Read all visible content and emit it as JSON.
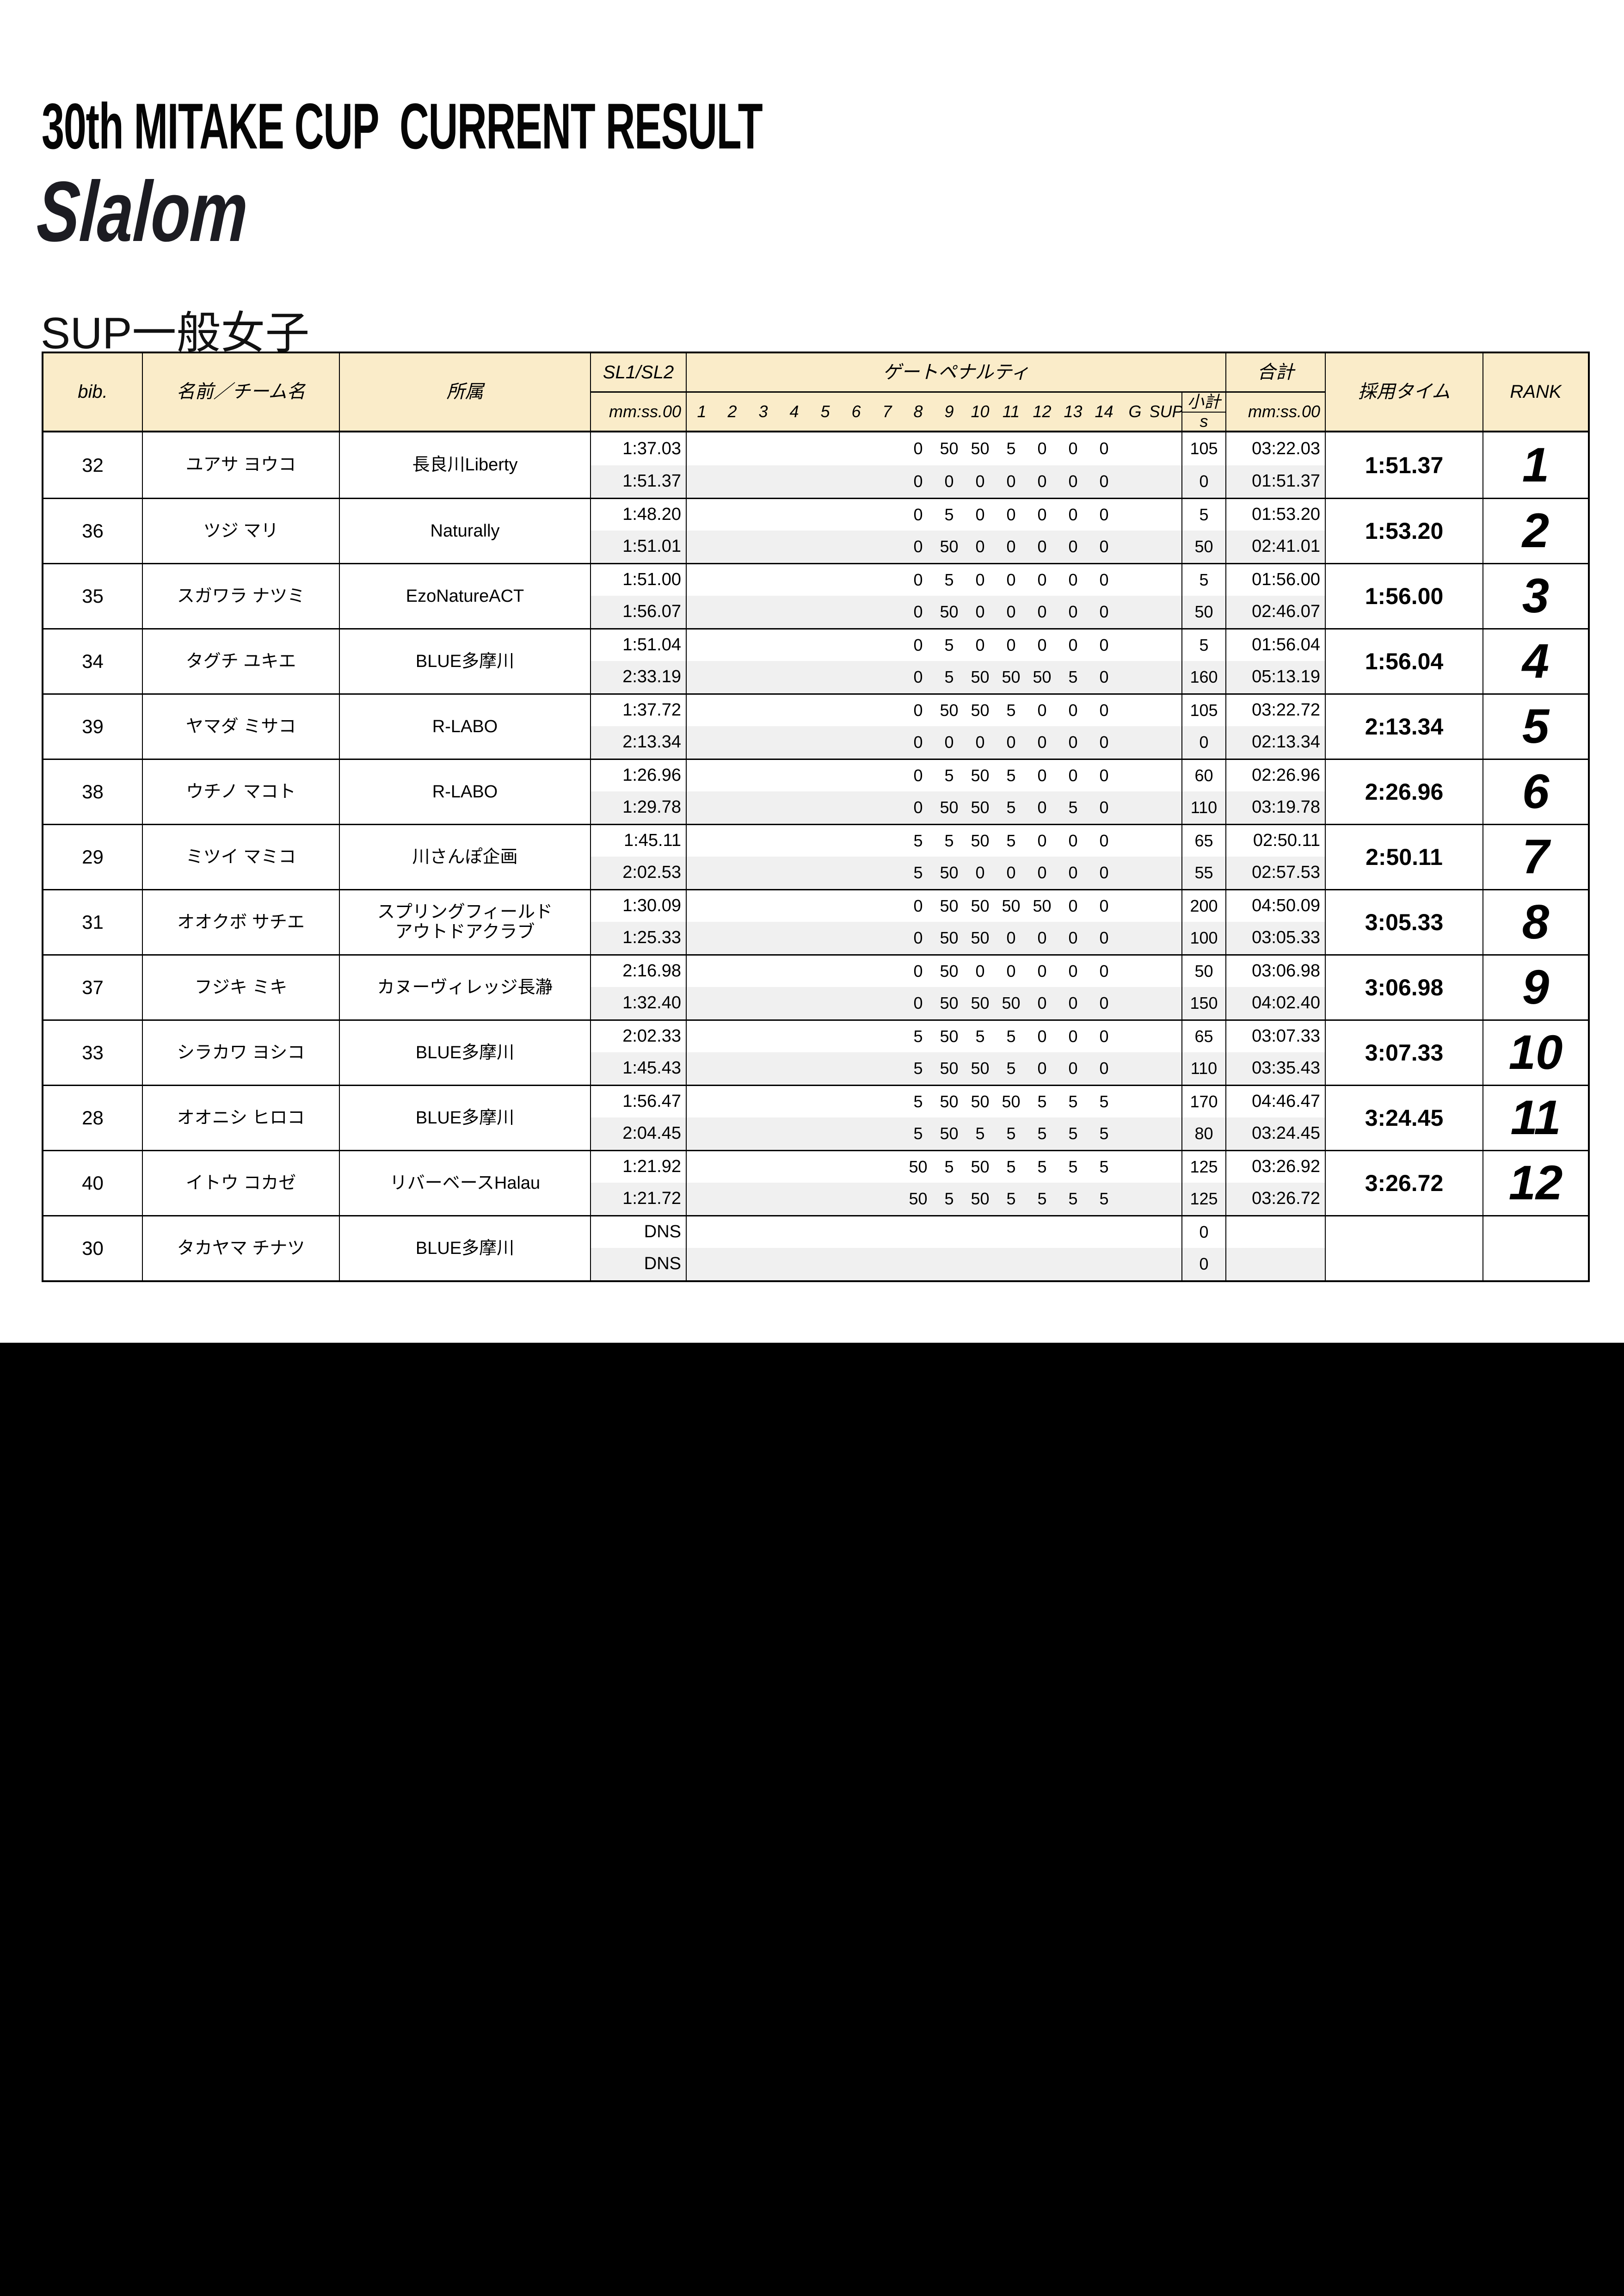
{
  "page": {
    "title": "30th MITAKE CUP  CURRENT RESULT",
    "event": "Slalom",
    "category": "SUP一般女子"
  },
  "colors": {
    "header_bg": "#FAECC9",
    "alt_row_bg": "#F0F0F0",
    "border": "#000000",
    "footer_block": "#000000"
  },
  "table": {
    "headers": {
      "bib": "bib.",
      "name": "名前／チーム名",
      "affiliation": "所属",
      "sl": "SL1/SL2",
      "sl_unit": "mm:ss.00",
      "gate_penalty": "ゲートペナルティ",
      "subtotal": "小計",
      "subtotal_unit": "s",
      "total": "合計",
      "total_unit": "mm:ss.00",
      "adopted_time": "採用タイム",
      "rank": "RANK"
    },
    "gates": [
      "1",
      "2",
      "3",
      "4",
      "5",
      "6",
      "7",
      "8",
      "9",
      "10",
      "11",
      "12",
      "13",
      "14",
      "G",
      "SUP"
    ],
    "penalty_gate_start": 8,
    "rows": [
      {
        "bib": "32",
        "name": "ユアサ ヨウコ",
        "team": "長良川Liberty",
        "runs": [
          {
            "time": "1:37.03",
            "pens": [
              "0",
              "50",
              "50",
              "5",
              "0",
              "0",
              "0"
            ],
            "sub": "105",
            "total": "03:22.03"
          },
          {
            "time": "1:51.37",
            "pens": [
              "0",
              "0",
              "0",
              "0",
              "0",
              "0",
              "0"
            ],
            "sub": "0",
            "total": "01:51.37"
          }
        ],
        "adopted": "1:51.37",
        "rank": "1"
      },
      {
        "bib": "36",
        "name": "ツジ マリ",
        "team": "Naturally",
        "runs": [
          {
            "time": "1:48.20",
            "pens": [
              "0",
              "5",
              "0",
              "0",
              "0",
              "0",
              "0"
            ],
            "sub": "5",
            "total": "01:53.20"
          },
          {
            "time": "1:51.01",
            "pens": [
              "0",
              "50",
              "0",
              "0",
              "0",
              "0",
              "0"
            ],
            "sub": "50",
            "total": "02:41.01"
          }
        ],
        "adopted": "1:53.20",
        "rank": "2"
      },
      {
        "bib": "35",
        "name": "スガワラ ナツミ",
        "team": "EzoNatureACT",
        "runs": [
          {
            "time": "1:51.00",
            "pens": [
              "0",
              "5",
              "0",
              "0",
              "0",
              "0",
              "0"
            ],
            "sub": "5",
            "total": "01:56.00"
          },
          {
            "time": "1:56.07",
            "pens": [
              "0",
              "50",
              "0",
              "0",
              "0",
              "0",
              "0"
            ],
            "sub": "50",
            "total": "02:46.07"
          }
        ],
        "adopted": "1:56.00",
        "rank": "3"
      },
      {
        "bib": "34",
        "name": "タグチ ユキエ",
        "team": "BLUE多摩川",
        "runs": [
          {
            "time": "1:51.04",
            "pens": [
              "0",
              "5",
              "0",
              "0",
              "0",
              "0",
              "0"
            ],
            "sub": "5",
            "total": "01:56.04"
          },
          {
            "time": "2:33.19",
            "pens": [
              "0",
              "5",
              "50",
              "50",
              "50",
              "5",
              "0"
            ],
            "sub": "160",
            "total": "05:13.19"
          }
        ],
        "adopted": "1:56.04",
        "rank": "4"
      },
      {
        "bib": "39",
        "name": "ヤマダ ミサコ",
        "team": "R-LABO",
        "runs": [
          {
            "time": "1:37.72",
            "pens": [
              "0",
              "50",
              "50",
              "5",
              "0",
              "0",
              "0"
            ],
            "sub": "105",
            "total": "03:22.72"
          },
          {
            "time": "2:13.34",
            "pens": [
              "0",
              "0",
              "0",
              "0",
              "0",
              "0",
              "0"
            ],
            "sub": "0",
            "total": "02:13.34"
          }
        ],
        "adopted": "2:13.34",
        "rank": "5"
      },
      {
        "bib": "38",
        "name": "ウチノ マコト",
        "team": "R-LABO",
        "runs": [
          {
            "time": "1:26.96",
            "pens": [
              "0",
              "5",
              "50",
              "5",
              "0",
              "0",
              "0"
            ],
            "sub": "60",
            "total": "02:26.96"
          },
          {
            "time": "1:29.78",
            "pens": [
              "0",
              "50",
              "50",
              "5",
              "0",
              "5",
              "0"
            ],
            "sub": "110",
            "total": "03:19.78"
          }
        ],
        "adopted": "2:26.96",
        "rank": "6"
      },
      {
        "bib": "29",
        "name": "ミツイ マミコ",
        "team": "川さんぽ企画",
        "runs": [
          {
            "time": "1:45.11",
            "pens": [
              "5",
              "5",
              "50",
              "5",
              "0",
              "0",
              "0"
            ],
            "sub": "65",
            "total": "02:50.11"
          },
          {
            "time": "2:02.53",
            "pens": [
              "5",
              "50",
              "0",
              "0",
              "0",
              "0",
              "0"
            ],
            "sub": "55",
            "total": "02:57.53"
          }
        ],
        "adopted": "2:50.11",
        "rank": "7"
      },
      {
        "bib": "31",
        "name": "オオクボ サチエ",
        "team": "スプリングフィールド\nアウトドアクラブ",
        "runs": [
          {
            "time": "1:30.09",
            "pens": [
              "0",
              "50",
              "50",
              "50",
              "50",
              "0",
              "0"
            ],
            "sub": "200",
            "total": "04:50.09"
          },
          {
            "time": "1:25.33",
            "pens": [
              "0",
              "50",
              "50",
              "0",
              "0",
              "0",
              "0"
            ],
            "sub": "100",
            "total": "03:05.33"
          }
        ],
        "adopted": "3:05.33",
        "rank": "8"
      },
      {
        "bib": "37",
        "name": "フジキ ミキ",
        "team": "カヌーヴィレッジ長瀞",
        "runs": [
          {
            "time": "2:16.98",
            "pens": [
              "0",
              "50",
              "0",
              "0",
              "0",
              "0",
              "0"
            ],
            "sub": "50",
            "total": "03:06.98"
          },
          {
            "time": "1:32.40",
            "pens": [
              "0",
              "50",
              "50",
              "50",
              "0",
              "0",
              "0"
            ],
            "sub": "150",
            "total": "04:02.40"
          }
        ],
        "adopted": "3:06.98",
        "rank": "9"
      },
      {
        "bib": "33",
        "name": "シラカワ ヨシコ",
        "team": "BLUE多摩川",
        "runs": [
          {
            "time": "2:02.33",
            "pens": [
              "5",
              "50",
              "5",
              "5",
              "0",
              "0",
              "0"
            ],
            "sub": "65",
            "total": "03:07.33"
          },
          {
            "time": "1:45.43",
            "pens": [
              "5",
              "50",
              "50",
              "5",
              "0",
              "0",
              "0"
            ],
            "sub": "110",
            "total": "03:35.43"
          }
        ],
        "adopted": "3:07.33",
        "rank": "10"
      },
      {
        "bib": "28",
        "name": "オオニシ ヒロコ",
        "team": "BLUE多摩川",
        "runs": [
          {
            "time": "1:56.47",
            "pens": [
              "5",
              "50",
              "50",
              "50",
              "5",
              "5",
              "5"
            ],
            "sub": "170",
            "total": "04:46.47"
          },
          {
            "time": "2:04.45",
            "pens": [
              "5",
              "50",
              "5",
              "5",
              "5",
              "5",
              "5"
            ],
            "sub": "80",
            "total": "03:24.45"
          }
        ],
        "adopted": "3:24.45",
        "rank": "11"
      },
      {
        "bib": "40",
        "name": "イトウ コカゼ",
        "team": "リバーベースHalau",
        "runs": [
          {
            "time": "1:21.92",
            "pens": [
              "50",
              "5",
              "50",
              "5",
              "5",
              "5",
              "5"
            ],
            "sub": "125",
            "total": "03:26.92"
          },
          {
            "time": "1:21.72",
            "pens": [
              "50",
              "5",
              "50",
              "5",
              "5",
              "5",
              "5"
            ],
            "sub": "125",
            "total": "03:26.72"
          }
        ],
        "adopted": "3:26.72",
        "rank": "12"
      },
      {
        "bib": "30",
        "name": "タカヤマ チナツ",
        "team": "BLUE多摩川",
        "runs": [
          {
            "time": "DNS",
            "pens": null,
            "sub": "0",
            "total": ""
          },
          {
            "time": "DNS",
            "pens": null,
            "sub": "0",
            "total": ""
          }
        ],
        "adopted": "",
        "rank": ""
      }
    ]
  }
}
